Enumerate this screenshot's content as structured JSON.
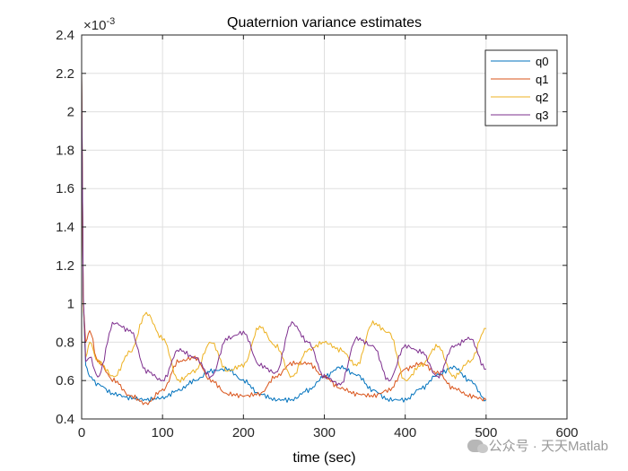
{
  "chart_data": {
    "type": "line",
    "title": "Quaternion variance estimates",
    "xlabel": "time (sec)",
    "ylabel": "",
    "y_multiplier": "×10",
    "y_exponent": "-3",
    "xlim": [
      0,
      600
    ],
    "ylim": [
      0.4,
      2.4
    ],
    "xticks": [
      "0",
      "100",
      "200",
      "300",
      "400",
      "500",
      "600"
    ],
    "yticks": [
      "0.4",
      "0.6",
      "0.8",
      "1",
      "1.2",
      "1.4",
      "1.6",
      "1.8",
      "2",
      "2.2",
      "2.4"
    ],
    "grid": true,
    "legend_position": "top-right",
    "series": [
      {
        "name": "q0",
        "color": "#0072BD",
        "x": [
          0,
          2,
          5,
          10,
          20,
          40,
          60,
          80,
          100,
          120,
          140,
          160,
          180,
          200,
          220,
          240,
          260,
          280,
          300,
          320,
          340,
          360,
          380,
          400,
          420,
          440,
          460,
          480,
          500
        ],
        "y": [
          2.2,
          1.0,
          0.68,
          0.62,
          0.58,
          0.53,
          0.51,
          0.5,
          0.51,
          0.55,
          0.6,
          0.65,
          0.66,
          0.6,
          0.53,
          0.5,
          0.5,
          0.55,
          0.62,
          0.67,
          0.63,
          0.55,
          0.5,
          0.5,
          0.56,
          0.63,
          0.67,
          0.6,
          0.5
        ]
      },
      {
        "name": "q1",
        "color": "#D95319",
        "x": [
          0,
          2,
          5,
          10,
          20,
          40,
          60,
          80,
          100,
          120,
          140,
          160,
          180,
          200,
          220,
          240,
          260,
          280,
          300,
          320,
          340,
          360,
          380,
          400,
          420,
          440,
          460,
          480,
          500
        ],
        "y": [
          2.2,
          1.0,
          0.8,
          0.86,
          0.7,
          0.6,
          0.52,
          0.48,
          0.55,
          0.7,
          0.72,
          0.6,
          0.53,
          0.52,
          0.53,
          0.62,
          0.69,
          0.69,
          0.62,
          0.56,
          0.53,
          0.52,
          0.55,
          0.66,
          0.69,
          0.64,
          0.56,
          0.52,
          0.5
        ]
      },
      {
        "name": "q2",
        "color": "#EDB120",
        "x": [
          0,
          2,
          5,
          10,
          20,
          40,
          60,
          80,
          100,
          120,
          140,
          160,
          180,
          200,
          220,
          240,
          260,
          280,
          300,
          320,
          340,
          360,
          380,
          400,
          420,
          440,
          460,
          480,
          500
        ],
        "y": [
          2.2,
          1.0,
          0.72,
          0.8,
          0.7,
          0.62,
          0.75,
          0.95,
          0.82,
          0.6,
          0.65,
          0.8,
          0.65,
          0.68,
          0.88,
          0.78,
          0.62,
          0.76,
          0.8,
          0.76,
          0.68,
          0.9,
          0.85,
          0.6,
          0.68,
          0.78,
          0.62,
          0.7,
          0.87
        ]
      },
      {
        "name": "q3",
        "color": "#7E2F8E",
        "x": [
          0,
          2,
          5,
          10,
          20,
          40,
          60,
          80,
          100,
          120,
          140,
          160,
          180,
          200,
          220,
          240,
          260,
          280,
          300,
          320,
          340,
          360,
          380,
          400,
          420,
          440,
          460,
          480,
          500
        ],
        "y": [
          2.2,
          1.05,
          0.7,
          0.72,
          0.62,
          0.9,
          0.86,
          0.65,
          0.6,
          0.76,
          0.72,
          0.62,
          0.82,
          0.85,
          0.68,
          0.64,
          0.9,
          0.8,
          0.62,
          0.58,
          0.82,
          0.78,
          0.6,
          0.78,
          0.75,
          0.62,
          0.78,
          0.82,
          0.66
        ]
      }
    ]
  },
  "watermark": {
    "text": "公众号 · 天天Matlab",
    "icon": "wechat-icon"
  }
}
